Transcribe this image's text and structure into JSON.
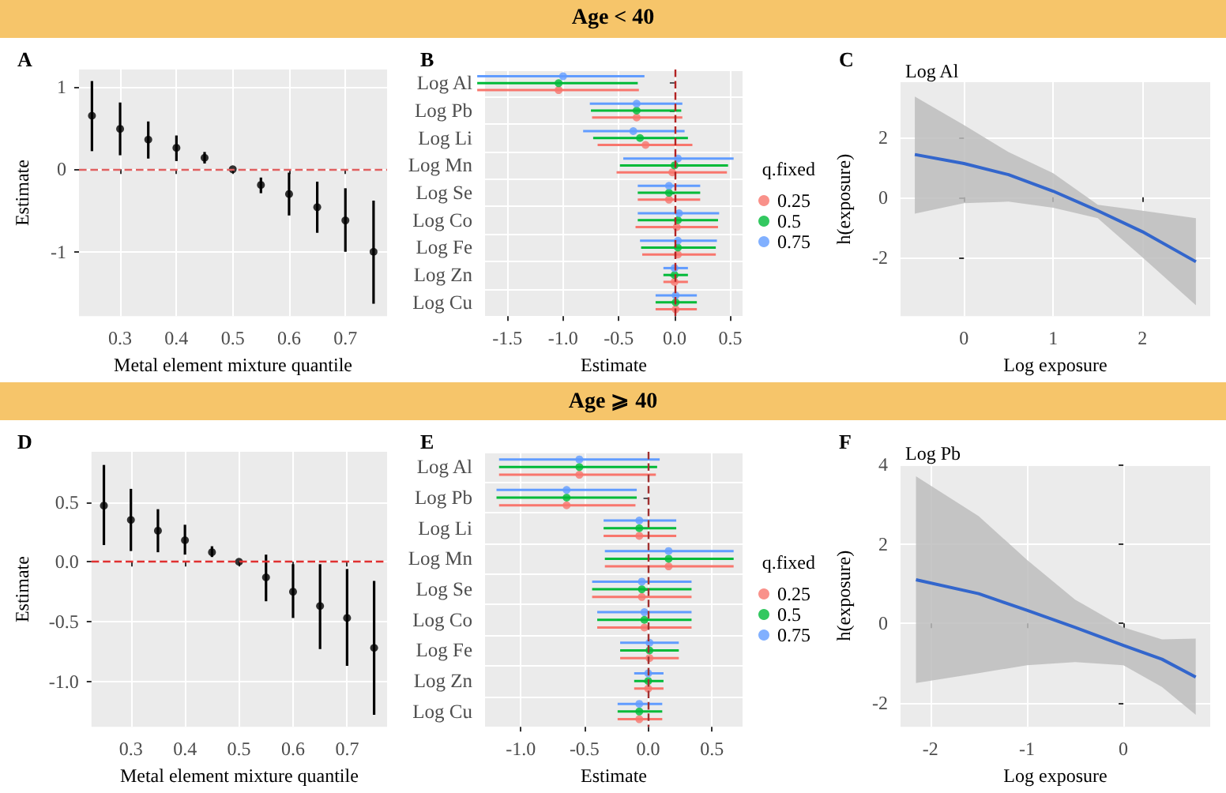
{
  "chart_data": [
    {
      "type": "scatter",
      "title": "A",
      "annotations": [
        "Age < 40"
      ],
      "xlabel": "Metal element mixture quantile",
      "ylabel": "Estimate",
      "x": [
        0.25,
        0.3,
        0.35,
        0.4,
        0.45,
        0.5,
        0.55,
        0.6,
        0.65,
        0.7,
        0.75
      ],
      "values": [
        0.65,
        0.49,
        0.36,
        0.26,
        0.14,
        0,
        -0.19,
        -0.3,
        -0.46,
        -0.62,
        -1.0
      ],
      "errors": [
        [
          0.22,
          1.07
        ],
        [
          0.17,
          0.81
        ],
        [
          0.13,
          0.58
        ],
        [
          0.1,
          0.41
        ],
        [
          0.07,
          0.21
        ],
        null,
        [
          -0.29,
          -0.1
        ],
        [
          -0.56,
          -0.04
        ],
        [
          -0.77,
          -0.15
        ],
        [
          -1.0,
          -0.23
        ],
        [
          -1.63,
          -0.38
        ]
      ],
      "color": "#000000",
      "marker": "circle",
      "xlim": [
        0.227,
        0.774
      ],
      "xticks": [
        0.3,
        0.4,
        0.5,
        0.6,
        0.7
      ],
      "ylim": [
        -1.78,
        1.21
      ],
      "yticks": [
        -1,
        0,
        1
      ],
      "ref_lines": [
        {
          "axis": "y",
          "value": 0,
          "color": "#e06060",
          "line_style": "dashed"
        }
      ],
      "grid": true
    },
    {
      "type": "scatter",
      "title": "B",
      "orientation": "horizontal",
      "xlabel": "Estimate",
      "categories": [
        "Log Al",
        "Log Pb",
        "Log Li",
        "Log Mn",
        "Log Se",
        "Log Co",
        "Log Fe",
        "Log Zn",
        "Log Cu"
      ],
      "series": [
        {
          "name": "0.25",
          "color": "#f8766d",
          "values": [
            -1.04,
            -0.34,
            -0.26,
            -0.02,
            -0.05,
            0.02,
            0.03,
            0.0,
            0.01
          ],
          "errors": [
            [
              -1.77,
              -0.32
            ],
            [
              -0.74,
              0.07
            ],
            [
              -0.69,
              0.16
            ],
            [
              -0.52,
              0.47
            ],
            [
              -0.33,
              0.23
            ],
            [
              -0.35,
              0.39
            ],
            [
              -0.29,
              0.37
            ],
            [
              -0.1,
              0.12
            ],
            [
              -0.17,
              0.2
            ]
          ]
        },
        {
          "name": "0.5",
          "color": "#00ba38",
          "values": [
            -1.04,
            -0.34,
            -0.31,
            0.0,
            -0.05,
            0.03,
            0.03,
            0.0,
            0.01
          ],
          "errors": [
            [
              -1.77,
              -0.33
            ],
            [
              -0.75,
              0.06
            ],
            [
              -0.73,
              0.12
            ],
            [
              -0.49,
              0.48
            ],
            [
              -0.33,
              0.23
            ],
            [
              -0.33,
              0.39
            ],
            [
              -0.3,
              0.37
            ],
            [
              -0.1,
              0.12
            ],
            [
              -0.17,
              0.2
            ]
          ]
        },
        {
          "name": "0.75",
          "color": "#619cff",
          "values": [
            -1.0,
            -0.34,
            -0.37,
            0.03,
            -0.05,
            0.04,
            0.03,
            0.0,
            0.01
          ],
          "errors": [
            [
              -1.77,
              -0.27
            ],
            [
              -0.76,
              0.07
            ],
            [
              -0.82,
              0.09
            ],
            [
              -0.46,
              0.53
            ],
            [
              -0.33,
              0.23
            ],
            [
              -0.33,
              0.4
            ],
            [
              -0.31,
              0.38
            ],
            [
              -0.1,
              0.12
            ],
            [
              -0.17,
              0.2
            ]
          ]
        }
      ],
      "legend": "right",
      "legend_title": "q.fixed",
      "xlim": [
        -1.7,
        0.61
      ],
      "xticks": [
        {
          "value": -1.5,
          "label": "-1.5"
        },
        {
          "value": -1,
          "label": "-1.0"
        },
        {
          "value": -0.5,
          "label": "-0.5"
        },
        {
          "value": 0,
          "label": "0.0"
        },
        {
          "value": 0.5,
          "label": "0.5"
        }
      ],
      "ref_lines": [
        {
          "axis": "x",
          "value": 0,
          "color": "#b22222",
          "line_style": "dashed"
        }
      ],
      "grid": true
    },
    {
      "type": "line",
      "title": "C",
      "subtitle": "Log Al",
      "xlabel": "Log exposure",
      "ylabel": "h(exposure)",
      "series": [
        {
          "color": "#3366cc",
          "x": [
            -0.55,
            0,
            0.5,
            1,
            1.5,
            2,
            2.6
          ],
          "values": [
            1.42,
            1.12,
            0.75,
            0.2,
            -0.45,
            -1.15,
            -2.15
          ],
          "lower": [
            -0.55,
            -0.2,
            -0.15,
            -0.35,
            -0.7,
            -2.0,
            -3.6
          ],
          "upper": [
            3.35,
            2.4,
            1.5,
            0.8,
            -0.25,
            -0.45,
            -0.7
          ]
        }
      ],
      "xlim": [
        -0.71,
        2.76
      ],
      "xticks": [
        0,
        1,
        2
      ],
      "ylim": [
        -3.96,
        3.83
      ],
      "yticks": [
        -2,
        0,
        2
      ],
      "grid": true
    },
    {
      "type": "scatter",
      "title": "D",
      "annotations": [
        "Age ⩾ 40"
      ],
      "xlabel": "Metal element mixture quantile",
      "ylabel": "Estimate",
      "x": [
        0.25,
        0.3,
        0.35,
        0.4,
        0.45,
        0.5,
        0.55,
        0.6,
        0.65,
        0.7,
        0.75
      ],
      "values": [
        0.47,
        0.35,
        0.26,
        0.18,
        0.08,
        0,
        -0.13,
        -0.25,
        -0.37,
        -0.47,
        -0.72
      ],
      "errors": [
        [
          0.14,
          0.81
        ],
        [
          0.09,
          0.61
        ],
        [
          0.08,
          0.44
        ],
        [
          0.06,
          0.31
        ],
        [
          0.04,
          0.13
        ],
        null,
        [
          -0.33,
          0.06
        ],
        [
          -0.47,
          -0.02
        ],
        [
          -0.73,
          -0.02
        ],
        [
          -0.87,
          -0.06
        ],
        [
          -1.28,
          -0.16
        ]
      ],
      "color": "#000000",
      "marker": "circle",
      "xlim": [
        0.227,
        0.774
      ],
      "xticks": [
        0.3,
        0.4,
        0.5,
        0.6,
        0.7
      ],
      "ylim": [
        -1.38,
        0.92
      ],
      "yticks": [
        {
          "value": -1,
          "label": "-1.0"
        },
        {
          "value": -0.5,
          "label": "-0.5"
        },
        {
          "value": 0,
          "label": "0.0"
        },
        {
          "value": 0.5,
          "label": "0.5"
        }
      ],
      "ref_lines": [
        {
          "axis": "y",
          "value": 0,
          "color": "#e03030",
          "line_style": "dashed"
        }
      ],
      "grid": true
    },
    {
      "type": "scatter",
      "title": "E",
      "orientation": "horizontal",
      "xlabel": "Estimate",
      "categories": [
        "Log Al",
        "Log Pb",
        "Log Li",
        "Log Mn",
        "Log Se",
        "Log Co",
        "Log Fe",
        "Log Zn",
        "Log Cu"
      ],
      "series": [
        {
          "name": "0.25",
          "color": "#f8766d",
          "values": [
            -0.54,
            -0.64,
            -0.07,
            0.16,
            -0.05,
            -0.03,
            0.01,
            0.0,
            -0.07
          ],
          "errors": [
            [
              -1.17,
              0.06
            ],
            [
              -1.17,
              -0.1
            ],
            [
              -0.35,
              0.22
            ],
            [
              -0.34,
              0.67
            ],
            [
              -0.44,
              0.34
            ],
            [
              -0.4,
              0.34
            ],
            [
              -0.22,
              0.24
            ],
            [
              -0.11,
              0.12
            ],
            [
              -0.24,
              0.11
            ]
          ]
        },
        {
          "name": "0.5",
          "color": "#00ba38",
          "values": [
            -0.54,
            -0.64,
            -0.07,
            0.16,
            -0.05,
            -0.03,
            0.01,
            0.0,
            -0.07
          ],
          "errors": [
            [
              -1.17,
              0.07
            ],
            [
              -1.19,
              -0.09
            ],
            [
              -0.35,
              0.22
            ],
            [
              -0.34,
              0.67
            ],
            [
              -0.44,
              0.34
            ],
            [
              -0.4,
              0.34
            ],
            [
              -0.22,
              0.24
            ],
            [
              -0.11,
              0.12
            ],
            [
              -0.24,
              0.11
            ]
          ]
        },
        {
          "name": "0.75",
          "color": "#619cff",
          "values": [
            -0.54,
            -0.64,
            -0.07,
            0.16,
            -0.05,
            -0.03,
            0.01,
            0.0,
            -0.07
          ],
          "errors": [
            [
              -1.17,
              0.09
            ],
            [
              -1.19,
              -0.09
            ],
            [
              -0.35,
              0.22
            ],
            [
              -0.34,
              0.67
            ],
            [
              -0.44,
              0.34
            ],
            [
              -0.4,
              0.34
            ],
            [
              -0.22,
              0.24
            ],
            [
              -0.11,
              0.12
            ],
            [
              -0.24,
              0.11
            ]
          ]
        }
      ],
      "legend": "right",
      "legend_title": "q.fixed",
      "xlim": [
        -1.28,
        0.74
      ],
      "xticks": [
        {
          "value": -1,
          "label": "-1.0"
        },
        {
          "value": -0.5,
          "label": "-0.5"
        },
        {
          "value": 0,
          "label": "0.0"
        },
        {
          "value": 0.5,
          "label": "0.5"
        }
      ],
      "ref_lines": [
        {
          "axis": "x",
          "value": 0,
          "color": "#a03030",
          "line_style": "dashed"
        }
      ],
      "grid": true
    },
    {
      "type": "line",
      "title": "F",
      "subtitle": "Log Pb",
      "xlabel": "Log exposure",
      "ylabel": "h(exposure)",
      "series": [
        {
          "color": "#3366cc",
          "x": [
            -2.15,
            -1.5,
            -1,
            -0.5,
            0,
            0.4,
            0.75
          ],
          "values": [
            1.1,
            0.75,
            0.33,
            -0.1,
            -0.55,
            -0.9,
            -1.35
          ],
          "lower": [
            -1.5,
            -1.25,
            -1.05,
            -0.97,
            -1.05,
            -1.6,
            -2.3
          ],
          "upper": [
            3.7,
            2.7,
            1.6,
            0.6,
            -0.1,
            -0.4,
            -0.38
          ]
        }
      ],
      "xlim": [
        -2.31,
        0.9
      ],
      "xticks": [
        -2,
        -1,
        0
      ],
      "ylim": [
        -2.6,
        4
      ],
      "yticks": [
        -2,
        0,
        2,
        4
      ],
      "grid": true
    }
  ]
}
